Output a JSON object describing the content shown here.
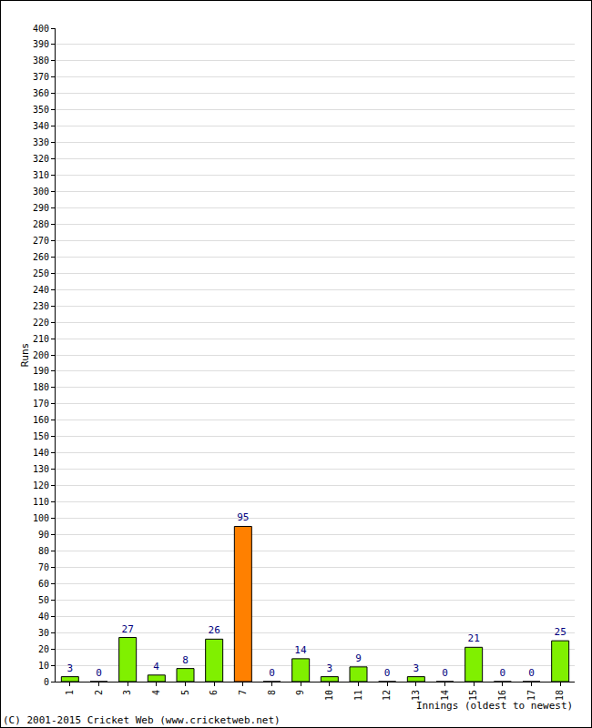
{
  "chart_data": {
    "type": "bar",
    "categories": [
      "1",
      "2",
      "3",
      "4",
      "5",
      "6",
      "7",
      "8",
      "9",
      "10",
      "11",
      "12",
      "13",
      "14",
      "15",
      "16",
      "17",
      "18"
    ],
    "values": [
      3,
      0,
      27,
      4,
      8,
      26,
      95,
      0,
      14,
      3,
      9,
      0,
      3,
      0,
      21,
      0,
      0,
      25
    ],
    "colors": [
      "#80f000",
      "#80f000",
      "#80f000",
      "#80f000",
      "#80f000",
      "#80f000",
      "#ff8000",
      "#80f000",
      "#80f000",
      "#80f000",
      "#80f000",
      "#80f000",
      "#80f000",
      "#80f000",
      "#80f000",
      "#80f000",
      "#80f000",
      "#80f000"
    ],
    "x_label": "Innings (oldest to newest)",
    "y_label": "Runs",
    "annotations": [
      "(C) 2001-2015 Cricket Web (www.cricketweb.net)"
    ],
    "ylim": [
      0,
      400
    ],
    "yticks": [
      0,
      10,
      20,
      30,
      40,
      50,
      60,
      70,
      80,
      90,
      100,
      110,
      120,
      130,
      140,
      150,
      160,
      170,
      180,
      190,
      200,
      210,
      220,
      230,
      240,
      250,
      260,
      270,
      280,
      290,
      300,
      310,
      320,
      330,
      340,
      350,
      360,
      370,
      380,
      390,
      400
    ],
    "grid": true,
    "data_labels": true
  }
}
